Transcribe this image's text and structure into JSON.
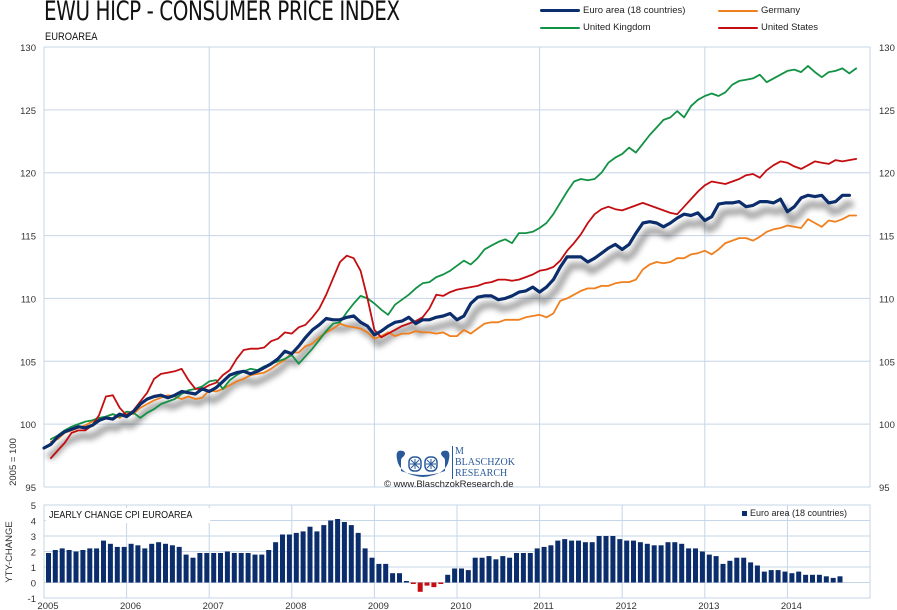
{
  "header": {
    "title": "EWU HICP - CONSUMER PRICE INDEX",
    "subtitle": "EUROAREA"
  },
  "legend": {
    "items": [
      {
        "label": "Euro area (18 countries)",
        "color": "#0b2d6b"
      },
      {
        "label": "Germany",
        "color": "#f07f1e"
      },
      {
        "label": "United Kingdom",
        "color": "#139245"
      },
      {
        "label": "United States",
        "color": "#c40d10"
      }
    ]
  },
  "watermark": {
    "initial": "M",
    "name_line1": "BLASCHZOK",
    "name_line2": "RESEARCH",
    "copyright": "© www.BlaschzokResearch.de"
  },
  "colors": {
    "grid": "#c6d5e8",
    "euro": "#0b2d6b",
    "germany": "#f07f1e",
    "uk": "#139245",
    "us": "#c40d10",
    "bar_pos": "#0b2d6b",
    "bar_neg": "#c40d10"
  },
  "chart_data": [
    {
      "type": "line",
      "title": "EWU HICP - CONSUMER PRICE INDEX",
      "subtitle": "EUROAREA",
      "ylabel": "2005 = 100",
      "ylim": [
        95,
        130
      ],
      "yticks": [
        95,
        100,
        105,
        110,
        115,
        120,
        125,
        130
      ],
      "xlim": [
        2005.0,
        2015.0
      ],
      "xgrid": [
        2005,
        2007,
        2009,
        2011,
        2013,
        2015
      ],
      "grid": true,
      "legend_position": "top-right",
      "series": [
        {
          "name": "Euro area (18 countries)",
          "start": 2005.0,
          "step_months": 1,
          "values": [
            98.1,
            98.4,
            99.0,
            99.4,
            99.6,
            99.8,
            99.7,
            99.9,
            100.3,
            100.5,
            100.4,
            100.8,
            100.6,
            101.0,
            101.6,
            102.0,
            102.2,
            102.3,
            102.1,
            102.3,
            102.6,
            102.5,
            102.4,
            102.8,
            102.6,
            102.9,
            103.4,
            103.9,
            104.1,
            104.2,
            104.0,
            104.2,
            104.5,
            104.8,
            105.2,
            105.8,
            105.6,
            106.2,
            106.9,
            107.5,
            107.9,
            108.4,
            108.3,
            108.3,
            108.5,
            108.6,
            108.1,
            107.8,
            107.1,
            107.4,
            107.8,
            108.1,
            108.2,
            108.5,
            108.0,
            108.3,
            108.3,
            108.5,
            108.6,
            108.8,
            108.3,
            108.6,
            109.6,
            110.1,
            110.2,
            110.2,
            109.9,
            110.0,
            110.2,
            110.5,
            110.6,
            110.9,
            110.5,
            110.9,
            111.5,
            112.5,
            113.3,
            113.3,
            113.3,
            112.9,
            113.2,
            113.6,
            114.0,
            114.3,
            113.9,
            114.3,
            115.2,
            116.0,
            116.1,
            116.0,
            115.7,
            116.0,
            116.4,
            116.7,
            116.6,
            116.8,
            116.2,
            116.5,
            117.5,
            117.6,
            117.6,
            117.7,
            117.3,
            117.4,
            117.7,
            117.7,
            117.6,
            117.9,
            116.9,
            117.3,
            118.0,
            118.2,
            118.1,
            118.2,
            117.6,
            117.7,
            118.2,
            118.2
          ],
          "color": "#0b2d6b"
        },
        {
          "name": "Germany",
          "start": 2005.083,
          "step_months": 1,
          "values": [
            98.6,
            98.8,
            99.3,
            99.5,
            99.7,
            99.9,
            100.2,
            100.3,
            100.6,
            100.8,
            100.5,
            100.9,
            100.8,
            101.3,
            101.6,
            101.9,
            102.1,
            102.3,
            102.2,
            102.0,
            102.2,
            102.0,
            102.1,
            102.7,
            102.6,
            102.8,
            103.1,
            103.4,
            103.6,
            103.9,
            104.0,
            104.1,
            104.4,
            104.8,
            105.1,
            105.7,
            105.7,
            106.2,
            106.4,
            106.9,
            107.3,
            107.6,
            108.0,
            107.8,
            107.7,
            107.6,
            107.3,
            106.8,
            107.0,
            107.3,
            107.0,
            107.2,
            107.2,
            107.4,
            107.3,
            107.3,
            107.2,
            107.3,
            107.0,
            107.0,
            107.5,
            107.2,
            107.6,
            108.0,
            108.1,
            108.1,
            108.3,
            108.3,
            108.3,
            108.5,
            108.6,
            108.7,
            108.5,
            108.8,
            109.8,
            110.0,
            110.3,
            110.6,
            110.8,
            110.8,
            111.0,
            111.0,
            111.2,
            111.3,
            111.3,
            111.5,
            112.3,
            112.7,
            112.9,
            112.8,
            112.9,
            113.2,
            113.2,
            113.5,
            113.6,
            113.8,
            113.5,
            113.9,
            114.4,
            114.6,
            114.8,
            114.8,
            114.6,
            114.9,
            115.3,
            115.5,
            115.6,
            115.8,
            115.7,
            115.6,
            116.3,
            116.0,
            115.7,
            116.2,
            116.1,
            116.3,
            116.6,
            116.6
          ],
          "color": "#f07f1e"
        },
        {
          "name": "United Kingdom",
          "start": 2005.083,
          "step_months": 1,
          "values": [
            98.8,
            99.1,
            99.5,
            99.8,
            100.0,
            100.2,
            100.3,
            100.5,
            100.6,
            100.8,
            100.6,
            101.0,
            100.9,
            100.5,
            100.9,
            101.2,
            101.6,
            101.8,
            102.0,
            102.4,
            102.7,
            102.8,
            103.0,
            103.4,
            103.5,
            102.8,
            103.5,
            103.9,
            104.2,
            104.4,
            104.3,
            104.6,
            104.8,
            105.0,
            105.2,
            105.5,
            104.8,
            105.4,
            106.0,
            106.7,
            107.4,
            108.0,
            108.1,
            108.9,
            109.6,
            110.2,
            110.0,
            109.6,
            109.1,
            108.7,
            109.5,
            109.9,
            110.3,
            110.8,
            111.2,
            111.3,
            111.7,
            111.9,
            112.2,
            112.6,
            113.0,
            112.7,
            113.2,
            113.9,
            114.2,
            114.5,
            114.7,
            114.4,
            115.2,
            115.2,
            115.3,
            115.6,
            116.0,
            116.7,
            117.6,
            118.5,
            119.3,
            119.5,
            119.4,
            119.5,
            120.0,
            120.8,
            121.2,
            121.5,
            122.0,
            121.6,
            122.3,
            123.0,
            123.6,
            124.2,
            124.4,
            124.9,
            124.4,
            125.3,
            125.8,
            126.1,
            126.3,
            126.1,
            126.4,
            127.0,
            127.3,
            127.4,
            127.5,
            127.8,
            127.2,
            127.5,
            127.8,
            128.1,
            128.2,
            128.0,
            128.5,
            128.0,
            127.6,
            128.0,
            128.1,
            128.3,
            127.9,
            128.3
          ],
          "color": "#139245"
        },
        {
          "name": "United States",
          "start": 2005.083,
          "step_months": 1,
          "values": [
            97.3,
            97.9,
            98.5,
            99.3,
            99.5,
            99.5,
            99.9,
            100.7,
            102.2,
            102.3,
            101.3,
            100.7,
            101.1,
            101.8,
            102.5,
            103.6,
            104.0,
            104.1,
            104.2,
            104.4,
            103.5,
            102.8,
            102.8,
            103.1,
            103.3,
            103.9,
            104.3,
            105.2,
            105.9,
            106.0,
            106.0,
            106.1,
            106.6,
            106.8,
            107.3,
            107.2,
            107.7,
            107.9,
            108.5,
            109.2,
            110.3,
            111.6,
            112.9,
            113.4,
            113.2,
            112.2,
            110.0,
            107.5,
            106.9,
            107.2,
            107.5,
            107.8,
            108.0,
            108.2,
            108.5,
            109.2,
            110.3,
            110.2,
            110.5,
            110.7,
            110.8,
            110.9,
            111.0,
            111.2,
            111.3,
            111.5,
            111.5,
            111.4,
            111.5,
            111.7,
            111.9,
            112.2,
            112.3,
            112.5,
            113.0,
            113.8,
            114.4,
            115.1,
            116.0,
            116.7,
            117.1,
            117.3,
            117.1,
            117.0,
            117.2,
            117.4,
            117.6,
            117.4,
            117.2,
            117.0,
            116.8,
            116.7,
            117.3,
            117.9,
            118.5,
            119.0,
            119.3,
            119.2,
            119.1,
            119.3,
            119.5,
            119.8,
            119.9,
            119.6,
            120.2,
            120.6,
            120.9,
            120.8,
            120.5,
            120.3,
            120.6,
            120.9,
            120.8,
            120.7,
            121.0,
            120.9,
            121.0,
            121.1
          ],
          "color": "#c40d10"
        }
      ]
    },
    {
      "type": "bar",
      "title": "JEARLY CHANGE CPI EUROAREA",
      "ylabel": "YTY-CHANGE",
      "ylim": [
        -1,
        5
      ],
      "yticks": [
        -1,
        0,
        1,
        2,
        3,
        4,
        5
      ],
      "xlim": [
        2005.0,
        2015.0
      ],
      "xticks": [
        "2005",
        "2006",
        "2007",
        "2008",
        "2009",
        "2010",
        "2011",
        "2012",
        "2013",
        "2014"
      ],
      "grid": true,
      "legend_position": "top-right",
      "series": [
        {
          "name": "Euro area (18 countries)",
          "start": 2005.0,
          "step_months": 1,
          "values": [
            1.9,
            2.1,
            2.2,
            2.1,
            2.0,
            2.1,
            2.2,
            2.2,
            2.7,
            2.5,
            2.3,
            2.3,
            2.5,
            2.4,
            2.2,
            2.5,
            2.6,
            2.5,
            2.4,
            2.3,
            1.8,
            1.6,
            1.9,
            1.9,
            1.9,
            1.9,
            2.0,
            1.9,
            1.9,
            1.9,
            1.8,
            1.8,
            2.1,
            2.6,
            3.1,
            3.1,
            3.2,
            3.3,
            3.6,
            3.3,
            3.7,
            4.0,
            4.1,
            3.9,
            3.7,
            3.2,
            2.2,
            1.6,
            1.2,
            1.2,
            0.6,
            0.6,
            0.1,
            -0.1,
            -0.6,
            -0.2,
            -0.3,
            -0.1,
            0.5,
            0.9,
            0.9,
            0.8,
            1.6,
            1.6,
            1.7,
            1.5,
            1.7,
            1.6,
            1.9,
            1.9,
            1.9,
            2.2,
            2.3,
            2.4,
            2.7,
            2.8,
            2.7,
            2.7,
            2.6,
            2.6,
            3.0,
            3.0,
            3.0,
            2.8,
            2.7,
            2.7,
            2.6,
            2.5,
            2.4,
            2.4,
            2.6,
            2.6,
            2.5,
            2.2,
            2.2,
            2.0,
            1.8,
            1.7,
            1.2,
            1.4,
            1.6,
            1.6,
            1.3,
            1.1,
            0.7,
            0.8,
            0.8,
            0.7,
            0.6,
            0.7,
            0.5,
            0.5,
            0.5,
            0.4,
            0.3,
            0.4
          ],
          "color": "#0b2d6b",
          "negative_color": "#c40d10"
        }
      ]
    }
  ]
}
